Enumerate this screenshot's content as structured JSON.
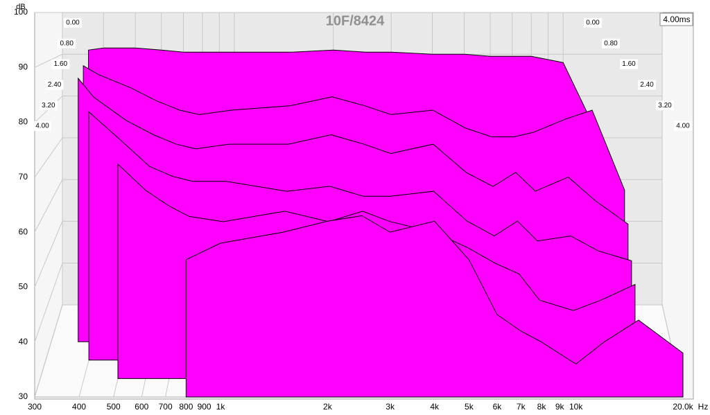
{
  "chart_data": {
    "type": "waterfall",
    "title": "10F/8424",
    "ylabel": "dB",
    "xlabel": "Hz",
    "zlabel": "4.00ms",
    "color": "#ff00ff",
    "log_x": true,
    "grid": true,
    "xlim": [
      300,
      20000
    ],
    "ylim": [
      30,
      100
    ],
    "zlim": [
      0,
      4
    ],
    "xticks": [
      300,
      400,
      500,
      600,
      700,
      800,
      900,
      {
        "value": 1000,
        "label": "1k"
      },
      {
        "value": 2000,
        "label": "2k"
      },
      {
        "value": 3000,
        "label": "3k"
      },
      {
        "value": 4000,
        "label": "4k"
      },
      {
        "value": 5000,
        "label": "5k"
      },
      {
        "value": 6000,
        "label": "6k"
      },
      {
        "value": 7000,
        "label": "7k"
      },
      {
        "value": 8000,
        "label": "8k"
      },
      {
        "value": 9000,
        "label": "9k"
      },
      {
        "value": 10000,
        "label": "10k"
      },
      {
        "value": 20000,
        "label": "20.0k"
      }
    ],
    "yticks": [
      30,
      40,
      50,
      60,
      70,
      80,
      90,
      100
    ],
    "zticks": [
      {
        "value": 0,
        "label": "0.00"
      },
      {
        "value": 0.8,
        "label": "0.80"
      },
      {
        "value": 1.6,
        "label": "1.60"
      },
      {
        "value": 2.4,
        "label": "2.40"
      },
      {
        "value": 3.2,
        "label": "3.20"
      },
      {
        "value": 4,
        "label": "4.00"
      }
    ],
    "x": [
      360,
      400,
      500,
      600,
      700,
      800,
      1000,
      1500,
      2000,
      2500,
      3000,
      4000,
      5000,
      6000,
      7000,
      8000,
      10000,
      12000,
      15000,
      20000
    ],
    "series": [
      {
        "time": 0,
        "values": [
          91,
          91.5,
          91.5,
          91,
          90.5,
          90.5,
          90.5,
          90.5,
          91,
          90.5,
          90.5,
          90,
          90,
          89.5,
          89.5,
          89.5,
          88,
          75,
          null,
          null
        ]
      },
      {
        "time": 0.8,
        "values": [
          88,
          86,
          83,
          80,
          78,
          77,
          78,
          79,
          81,
          79,
          77,
          78,
          74,
          72,
          72,
          73,
          76,
          78,
          60,
          null
        ]
      },
      {
        "time": 1.6,
        "values": [
          86,
          82,
          77,
          74,
          72,
          71,
          72,
          72,
          74,
          72,
          70,
          72,
          66,
          63,
          66,
          62,
          65,
          60,
          55,
          null
        ]
      },
      {
        "time": 2.4,
        "values": [
          null,
          80,
          74,
          69,
          67,
          66,
          66,
          64,
          65,
          63,
          63,
          64,
          58,
          55,
          58,
          54,
          55,
          52,
          50,
          null
        ]
      },
      {
        "time": 3.2,
        "values": [
          null,
          null,
          71,
          66,
          63,
          61,
          60,
          62,
          60,
          62,
          60,
          58,
          55,
          52,
          50,
          45,
          43,
          45,
          48,
          null
        ]
      },
      {
        "time": 4,
        "values": [
          null,
          null,
          null,
          null,
          null,
          55,
          58,
          60,
          62,
          63,
          60,
          62,
          55,
          45,
          42,
          40,
          36,
          40,
          44,
          38
        ]
      }
    ]
  }
}
